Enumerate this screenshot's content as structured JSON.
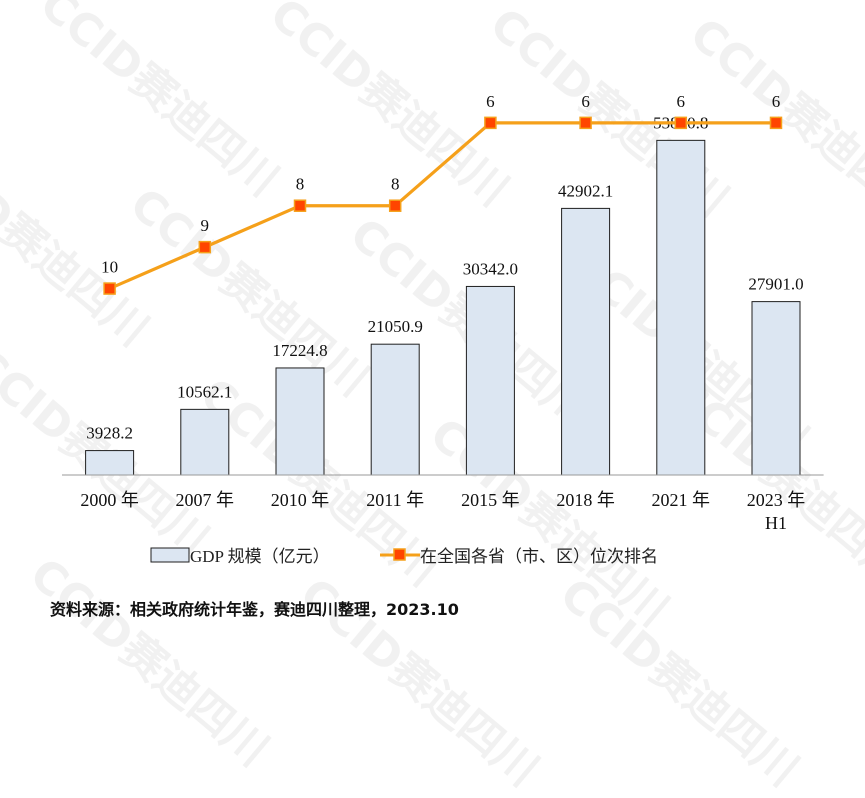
{
  "watermark": "CCID赛迪四川",
  "chart_data": {
    "type": "bar",
    "categories": [
      "2000 年",
      "2007 年",
      "2010 年",
      "2011 年",
      "2015 年",
      "2018 年",
      "2021 年",
      "2023 年\nH1"
    ],
    "series": [
      {
        "name": "GDP 规模（亿元）",
        "kind": "bar",
        "values": [
          3928.2,
          10562.1,
          17224.8,
          21050.9,
          30342.0,
          42902.1,
          53850.8,
          27901.0
        ],
        "labels": [
          "3928.2",
          "10562.1",
          "17224.8",
          "21050.9",
          "30342.0",
          "42902.1",
          "53850.8",
          "27901.0"
        ],
        "color": "#dce6f2"
      },
      {
        "name": "在全国各省（市、区）位次排名",
        "kind": "line",
        "values": [
          10,
          9,
          8,
          8,
          6,
          6,
          6,
          6
        ],
        "color": "#f5a01a"
      }
    ],
    "bar_ylim": [
      0,
      70000
    ],
    "rank_ylim": [
      4,
      14.5
    ],
    "legend_position": "bottom",
    "grid": false
  },
  "source": "资料来源：相关政府统计年鉴，赛迪四川整理，2023.10"
}
